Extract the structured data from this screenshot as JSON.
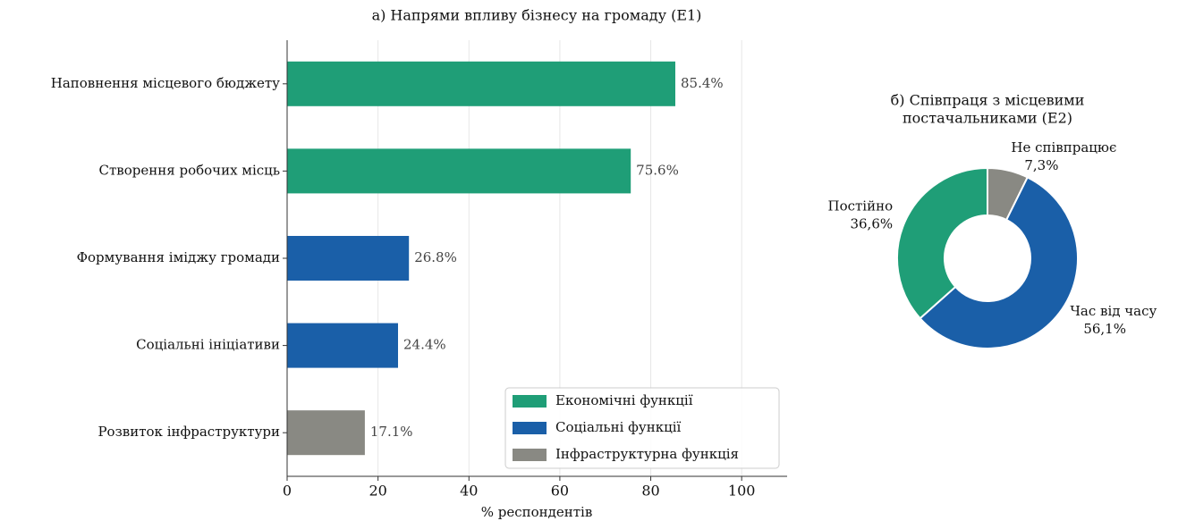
{
  "chart_data": [
    {
      "type": "barh",
      "title": "а) Напрями впливу бізнесу на громаду (Е1)",
      "x_label": "% респондентів",
      "categories": [
        "Наповнення місцевого бюджету",
        "Створення робочих місць",
        "Формування іміджу громади",
        "Соціальні ініціативи",
        "Розвиток інфраструктури"
      ],
      "values": [
        85.4,
        75.6,
        26.8,
        24.4,
        17.1
      ],
      "value_labels": [
        "85.4%",
        "75.6%",
        "26.8%",
        "24.4%",
        "17.1%"
      ],
      "colors": [
        "#1f9e77",
        "#1f9e77",
        "#1a5fa8",
        "#1a5fa8",
        "#898983"
      ],
      "legend": [
        {
          "name": "Економічні функції",
          "color": "#1f9e77"
        },
        {
          "name": "Соціальні функції",
          "color": "#1a5fa8"
        },
        {
          "name": "Інфраструктурна функція",
          "color": "#898983"
        }
      ],
      "legend_position": "lower right",
      "xlim": [
        0,
        110
      ],
      "xticks": [
        0,
        20,
        40,
        60,
        80,
        100
      ],
      "grid": true
    },
    {
      "type": "donut",
      "title": [
        "б) Співпраця з місцевими",
        "постачальниками (Е2)"
      ],
      "categories": [
        "Не співпрацює",
        "Час від часу",
        "Постійно"
      ],
      "values": [
        7.3,
        56.1,
        36.6
      ],
      "value_labels": [
        "7,3%",
        "56,1%",
        "36,6%"
      ],
      "colors": [
        "#898983",
        "#1a5fa8",
        "#1f9e77"
      ]
    }
  ]
}
